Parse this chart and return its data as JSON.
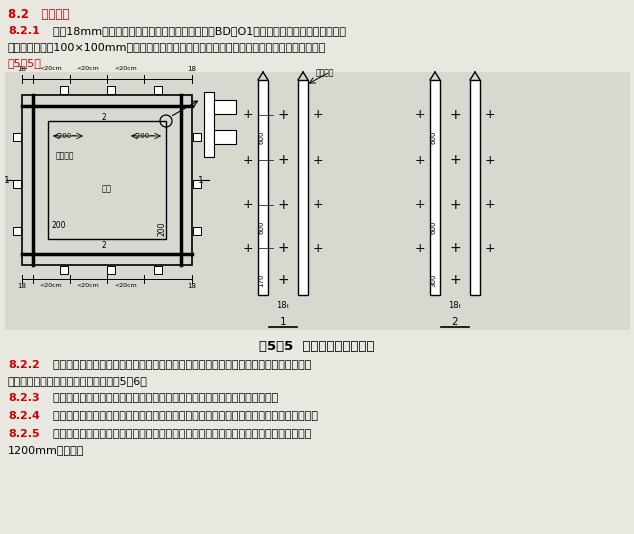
{
  "title_line": "8.2   柱模板：",
  "para_821_label": "8.2.1",
  "para_821_text1": "  采用18mm厚多层板（正反面及切口处均涂刷两遍BD－O1环氧保护剂）拼制方柱定型组合",
  "para_821_text2": "模板，背楞采用100×100mm方木，方木需经压刨找平方正后方可使用，接口形式及细部做法详见",
  "para_821_text3": "图5－5。",
  "fig_caption": "图5－5  方柱模板配里节点图",
  "para_822_label": "8.2.2",
  "para_822_text1": "  安装时，柱底清理干净后立柱模，根据控制线找准模板的位置，调整垂直度，利用可调支",
  "para_822_text2": "撑及钢丝绳斜接撑将柱模板固定，见图5－6。",
  "para_823_label": "8.2.3",
  "para_823_text": "  模板拼装前须逐块修整板面、边框，清除混凝土残渣、泥浆，并涂刷隔离剂。",
  "para_824_label": "8.2.4",
  "para_824_text": "  柱根施工缝处经剔凿、清理、吹洗干净后，根据柱模控制线找准模板位置，调整其垂直度。",
  "para_825_label": "8.2.5",
  "para_825_text1": "  利用可调支撑在四个方向将柱模固定，加固时每两人一组，用力均匀，可调支撑沿柱高每",
  "para_825_text2": "1200mm设一道。",
  "bg_color": "#e8e8e0",
  "text_color": "#000000",
  "title_color": "#cc0000",
  "underline_color": "#00aa00"
}
